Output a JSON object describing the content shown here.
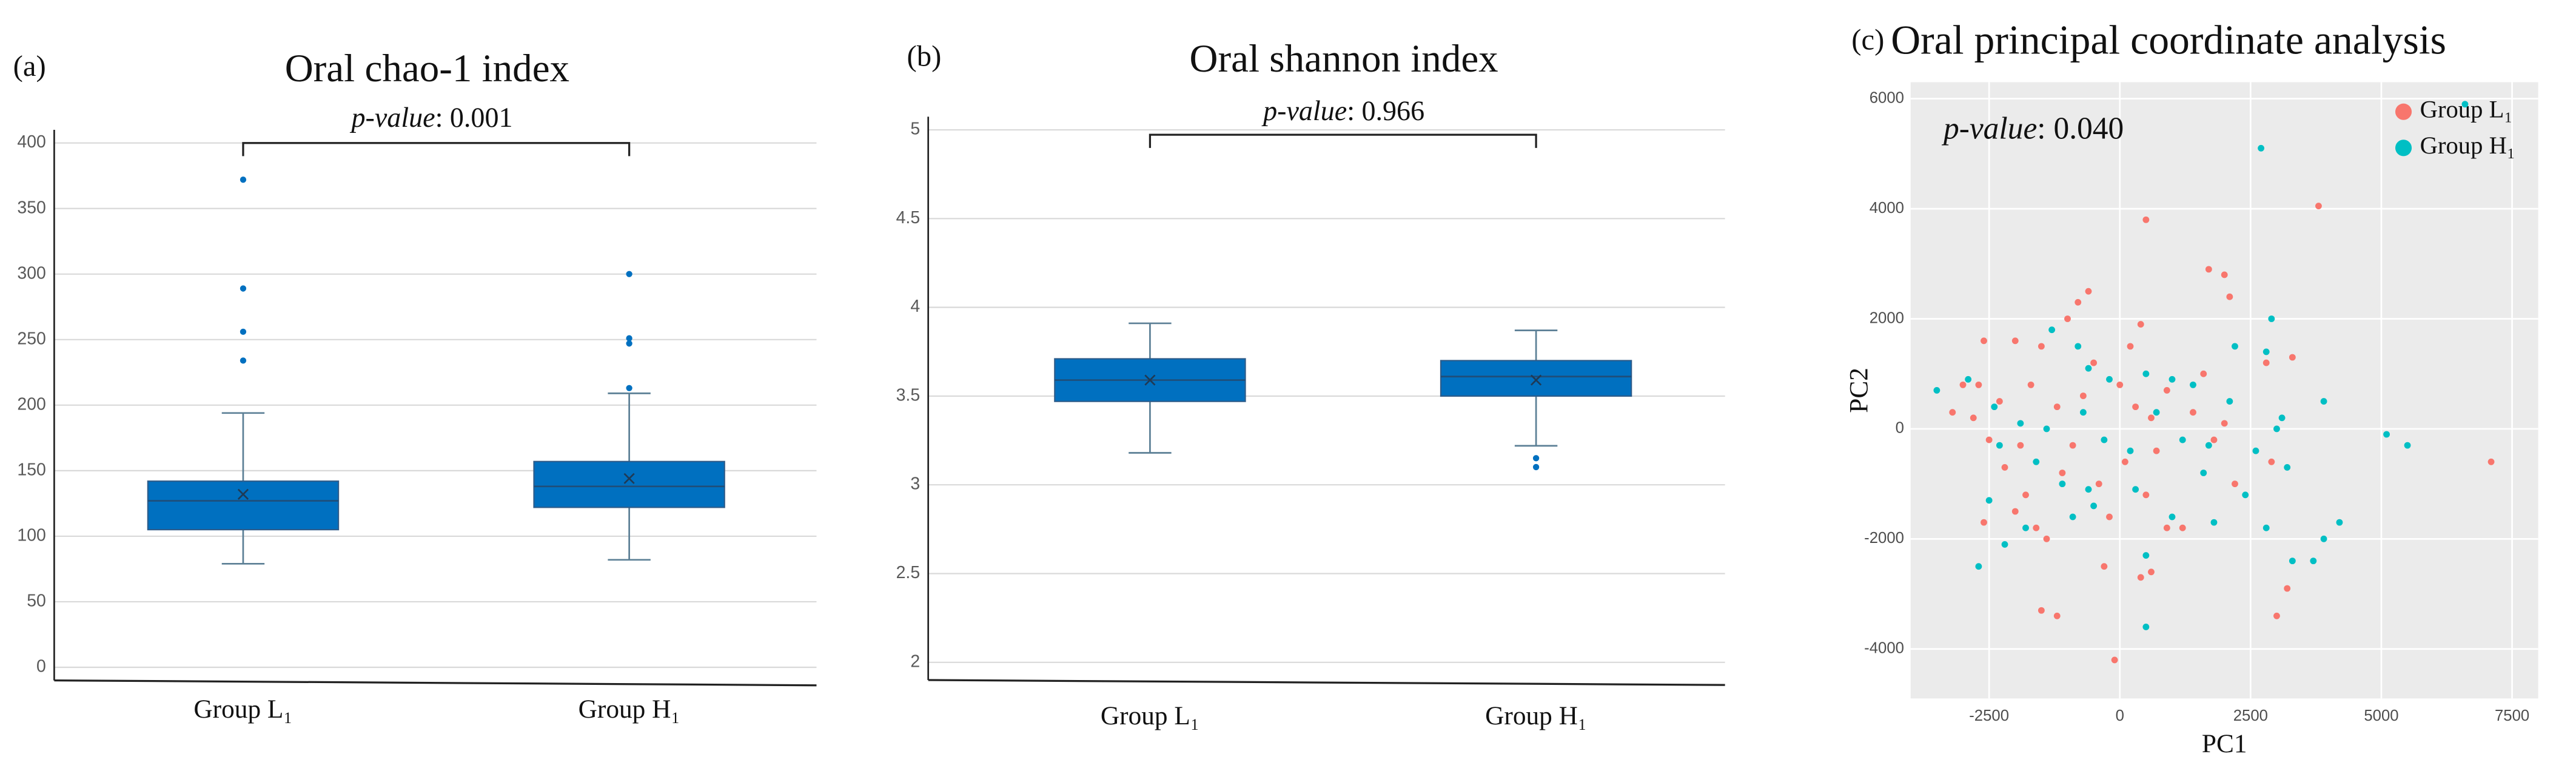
{
  "chart_data": [
    {
      "type": "box",
      "panel_label": "(a)",
      "title": "Oral chao-1 index",
      "annotation": {
        "label": "p-value",
        "text": ": 0.001"
      },
      "categories": [
        "Group L₁",
        "Group H₁"
      ],
      "color": "#0070c0",
      "stats": [
        {
          "min": 79,
          "q1": 105,
          "median": 127,
          "q3": 142,
          "max": 194,
          "mean": 132,
          "outliers": [
            234,
            256,
            289,
            372
          ]
        },
        {
          "min": 82,
          "q1": 122,
          "median": 138,
          "q3": 157,
          "max": 209,
          "mean": 144,
          "outliers": [
            213,
            247,
            251,
            300
          ]
        }
      ],
      "ylim": [
        -10,
        400
      ],
      "yticks": [
        0,
        50,
        100,
        150,
        200,
        250,
        300,
        350,
        400
      ],
      "grid": true
    },
    {
      "type": "box",
      "panel_label": "(b)",
      "title": "Oral shannon index",
      "annotation": {
        "label": "p-value",
        "text": ": 0.966"
      },
      "categories": [
        "Group L₁",
        "Group H₁"
      ],
      "color": "#0070c0",
      "stats": [
        {
          "min": 3.18,
          "q1": 3.47,
          "median": 3.59,
          "q3": 3.71,
          "max": 3.91,
          "mean": 3.59,
          "outliers": []
        },
        {
          "min": 3.22,
          "q1": 3.5,
          "median": 3.61,
          "q3": 3.7,
          "max": 3.87,
          "mean": 3.59,
          "outliers": [
            3.1,
            3.15
          ]
        }
      ],
      "ylim": [
        1.9,
        5
      ],
      "yticks": [
        2,
        2.5,
        3,
        3.5,
        4,
        4.5,
        5
      ],
      "grid": true
    },
    {
      "type": "scatter",
      "panel_label": "(c)",
      "title": "Oral principal coordinate analysis",
      "annotation": {
        "label": "p-value",
        "text": ": 0.040"
      },
      "x_label": "PC1",
      "y_label": "PC2",
      "legend": "top-right",
      "grid": true,
      "xlim": [
        -4000,
        8000
      ],
      "ylim": [
        -4900,
        6300
      ],
      "xticks": [
        -2500,
        0,
        2500,
        5000,
        7500
      ],
      "yticks": [
        -4000,
        -2000,
        0,
        2000,
        4000,
        6000
      ],
      "series": [
        {
          "name": "Group L₁",
          "color": "#f8766d",
          "x": [
            7100,
            3800,
            500,
            1700,
            2000,
            2100,
            -800,
            -1000,
            -600,
            -1500,
            -2000,
            -2600,
            -3000,
            -3200,
            -2800,
            -2500,
            -2200,
            -1800,
            -1600,
            -1400,
            -2000,
            -2600,
            -1500,
            -1200,
            -100,
            400,
            600,
            -300,
            900,
            1200,
            2200,
            3000,
            3200,
            3300,
            2800,
            -500,
            0,
            300,
            -700,
            -1200,
            -900,
            -400,
            100,
            700,
            1400,
            1800,
            -2300,
            -2700,
            -1700,
            200,
            400,
            -1100,
            600,
            900,
            2000,
            2900,
            -1900,
            -200,
            500,
            1600
          ],
          "y": [
            -600,
            4050,
            3800,
            2900,
            2800,
            2400,
            2300,
            2000,
            2500,
            1500,
            1600,
            1600,
            800,
            300,
            200,
            -200,
            -700,
            -1200,
            -1800,
            -2000,
            -1500,
            -1700,
            -3300,
            -3400,
            -4200,
            -2700,
            -2600,
            -2500,
            -1800,
            -1800,
            -1000,
            -3400,
            -2900,
            1300,
            1200,
            1200,
            800,
            400,
            600,
            400,
            -300,
            -1000,
            -600,
            -400,
            300,
            -200,
            500,
            800,
            800,
            1500,
            1900,
            -800,
            200,
            700,
            100,
            -600,
            -300,
            -1600,
            -1200,
            1000
          ]
        },
        {
          "name": "Group H₁",
          "color": "#00bfc4",
          "x": [
            6600,
            2700,
            2900,
            5100,
            5500,
            3900,
            3000,
            3200,
            4200,
            3900,
            3700,
            3300,
            2800,
            2400,
            1800,
            1000,
            500,
            500,
            -2700,
            -2200,
            -3500,
            -2900,
            -2400,
            -1900,
            -1300,
            -800,
            -600,
            -200,
            500,
            1000,
            1400,
            2200,
            2800,
            -1600,
            -1100,
            -600,
            -300,
            200,
            700,
            1200,
            1600,
            2600,
            -2500,
            -1800,
            -900,
            -500,
            300,
            -1400,
            -2300,
            1700,
            2100,
            -700,
            3100
          ],
          "y": [
            5900,
            5100,
            2000,
            -100,
            -300,
            500,
            0,
            -700,
            -1700,
            -2000,
            -2400,
            -2400,
            -1800,
            -1200,
            -1700,
            -1600,
            -2300,
            -3600,
            -2500,
            -2100,
            700,
            900,
            400,
            100,
            1800,
            1500,
            1100,
            900,
            1000,
            900,
            800,
            1500,
            1400,
            -600,
            -1000,
            -1100,
            -200,
            -400,
            300,
            -200,
            -800,
            -400,
            -1300,
            -1800,
            -1600,
            -1400,
            -1100,
            0,
            -300,
            -300,
            500,
            300,
            200
          ]
        }
      ]
    }
  ]
}
